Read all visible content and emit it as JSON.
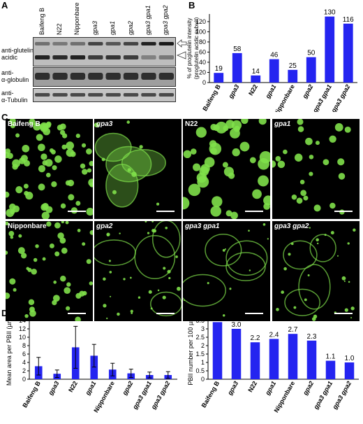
{
  "panels": {
    "A": "A",
    "B": "B",
    "C": "C",
    "D": "D",
    "E": "E"
  },
  "panelA": {
    "lanes": [
      {
        "label": "Baifeng B",
        "italic": false
      },
      {
        "label": "N22",
        "italic": false
      },
      {
        "label": "Nipponbare",
        "italic": false
      },
      {
        "label": "gpa3",
        "italic": true
      },
      {
        "label": "gpa1",
        "italic": true
      },
      {
        "label": "gpa2",
        "italic": true
      },
      {
        "label": "gpa3 gpa1",
        "italic": true
      },
      {
        "label": "gpa3 gpa2",
        "italic": true
      }
    ],
    "rows": {
      "glutelin": [
        "anti-glutelin",
        "acidic"
      ],
      "globulin": [
        "anti-",
        "α-globulin"
      ],
      "tubulin": [
        "anti-",
        "α-Tubulin"
      ]
    },
    "open_arrow_icon": "open-arrow-icon",
    "open_triangle_icon": "open-triangle-icon"
  },
  "panelC": {
    "tiles": [
      {
        "label": "Baifeng B",
        "italic": false,
        "style": "dense-green-spheres"
      },
      {
        "label": "gpa3",
        "italic": true,
        "style": "large-cells-sparse"
      },
      {
        "label": "N22",
        "italic": false,
        "style": "large-spheres"
      },
      {
        "label": "gpa1",
        "italic": true,
        "style": "mixed"
      },
      {
        "label": "Nipponbare",
        "italic": false,
        "style": "small-spheres"
      },
      {
        "label": "gpa2",
        "italic": true,
        "style": "cells-small-dots"
      },
      {
        "label": "gpa3 gpa1",
        "italic": true,
        "style": "cell-outlines"
      },
      {
        "label": "gpa3 gpa2",
        "italic": true,
        "style": "cell-outlines-bright"
      }
    ],
    "colors": {
      "signal": "#7fe04a",
      "background": "#000000"
    }
  },
  "chart_data": [
    {
      "id": "B",
      "type": "bar",
      "categories": [
        "Baifeng B",
        "gpa3",
        "N22",
        "gpa1",
        "Nipponbare",
        "gpa2",
        "gpa3 gpa1",
        "gpa3 gpa2"
      ],
      "italic": [
        false,
        true,
        false,
        true,
        false,
        true,
        true,
        true
      ],
      "values": [
        19,
        58,
        14,
        46,
        25,
        50,
        130,
        116
      ],
      "data_labels": [
        "19",
        "58",
        "14",
        "46",
        "25",
        "50",
        "130",
        "116"
      ],
      "ylabel": "% of proglutelin intensity\n(proglutelin acidic subuit)",
      "ylim": [
        0,
        135
      ],
      "yticks": [
        0,
        20,
        40,
        60,
        80,
        100,
        120
      ],
      "color": "#2424f0",
      "grid": false
    },
    {
      "id": "D",
      "type": "bar",
      "categories": [
        "Baifeng B",
        "gpa3",
        "N22",
        "gpa1",
        "Nipponbare",
        "gpa2",
        "gpa3 gpa1",
        "gpa3 gpa2"
      ],
      "italic": [
        false,
        true,
        false,
        true,
        false,
        true,
        true,
        true
      ],
      "values": [
        3.1,
        1.3,
        7.6,
        5.6,
        2.3,
        1.4,
        1.0,
        1.0
      ],
      "errors": [
        2.1,
        0.9,
        5.0,
        2.7,
        1.5,
        1.0,
        0.7,
        0.8
      ],
      "ylabel": "Mean area per PBII (µm²)",
      "ylim": [
        0,
        14
      ],
      "yticks": [
        0,
        2,
        4,
        6,
        8,
        10,
        12,
        14
      ],
      "color": "#2424f0",
      "grid": false
    },
    {
      "id": "E",
      "type": "bar",
      "categories": [
        "Baifeng B",
        "gpa3",
        "N22",
        "gpa1",
        "Nipponbare",
        "gpa2",
        "gpa3 gpa1",
        "gpa3 gpa2"
      ],
      "italic": [
        false,
        true,
        false,
        true,
        false,
        true,
        true,
        true
      ],
      "values": [
        3.4,
        3.0,
        2.2,
        2.4,
        2.7,
        2.3,
        1.1,
        1.0
      ],
      "data_labels": [
        "3.4",
        "3.0",
        "2.2",
        "2.4",
        "2.7",
        "2.3",
        "1.1",
        "1.0"
      ],
      "ylabel": "PBII number per 100 µm²",
      "ylim": [
        0,
        3.5
      ],
      "yticks": [
        0,
        0.5,
        1,
        1.5,
        2,
        2.5,
        3,
        3.5
      ],
      "color": "#2424f0",
      "grid": false
    }
  ]
}
